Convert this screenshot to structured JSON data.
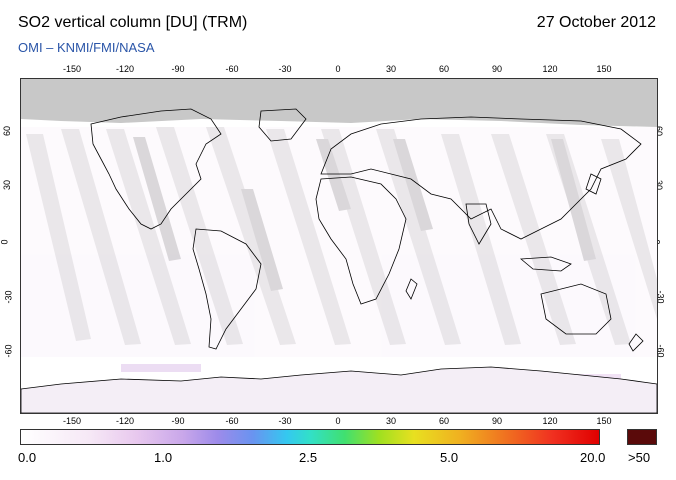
{
  "header": {
    "title": "SO2 vertical column [DU] (TRM)",
    "date": "27 October 2012",
    "credit": "OMI  –  KNMI/FMI/NASA"
  },
  "map": {
    "lon_ticks": [
      "-150",
      "-120",
      "-90",
      "-60",
      "-30",
      "0",
      "30",
      "60",
      "90",
      "120",
      "150"
    ],
    "lat_ticks": [
      "60",
      "30",
      "0",
      "-30",
      "-60"
    ],
    "colors": {
      "missing_data": "#c8c8c8",
      "swath_overlap": "#a8a8a8",
      "coast": "#000000"
    }
  },
  "colorbar": {
    "labels": [
      "0.0",
      "1.0",
      "2.5",
      "5.0",
      "20.0"
    ],
    "over_label": ">50",
    "over_color": "#5a0a0a"
  }
}
